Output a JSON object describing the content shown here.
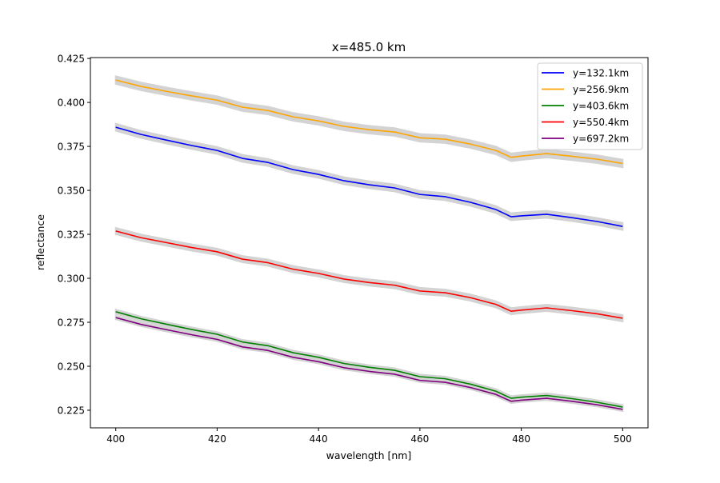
{
  "chart_data": {
    "type": "line",
    "title": "x=485.0 km",
    "xlabel": "wavelength [nm]",
    "ylabel": "reflectance",
    "xlim": [
      395,
      505
    ],
    "ylim": [
      0.215,
      0.4255
    ],
    "xticks": [
      400,
      420,
      440,
      460,
      480,
      500
    ],
    "xtick_labels": [
      "400",
      "420",
      "440",
      "460",
      "480",
      "500"
    ],
    "yticks": [
      0.225,
      0.25,
      0.275,
      0.3,
      0.325,
      0.35,
      0.375,
      0.4,
      0.425
    ],
    "ytick_labels": [
      "0.225",
      "0.250",
      "0.275",
      "0.300",
      "0.325",
      "0.350",
      "0.375",
      "0.400",
      "0.425"
    ],
    "grid": false,
    "legend_position": "top-right",
    "band_color": "#d3d3d3",
    "x": [
      400,
      405,
      410,
      415,
      420,
      425,
      430,
      435,
      440,
      445,
      450,
      455,
      460,
      465,
      470,
      475,
      478,
      480,
      485,
      490,
      495,
      500
    ],
    "series": [
      {
        "name": "y=132.1km",
        "color": "#0000ff",
        "band": 0.002,
        "values": [
          0.3859,
          0.3818,
          0.3786,
          0.3755,
          0.3727,
          0.3682,
          0.3659,
          0.3618,
          0.3591,
          0.3555,
          0.3532,
          0.3514,
          0.3477,
          0.3464,
          0.3432,
          0.3391,
          0.335,
          0.3355,
          0.3364,
          0.3345,
          0.3323,
          0.3295
        ]
      },
      {
        "name": "y=256.9km",
        "color": "#ffa500",
        "band": 0.0022,
        "values": [
          0.4127,
          0.4091,
          0.4063,
          0.4037,
          0.4013,
          0.3973,
          0.3954,
          0.3918,
          0.3895,
          0.3864,
          0.3845,
          0.3832,
          0.3799,
          0.3791,
          0.3763,
          0.3727,
          0.3688,
          0.3695,
          0.3709,
          0.3694,
          0.3677,
          0.3653
        ]
      },
      {
        "name": "y=403.6km",
        "color": "#008000",
        "band": 0.0012,
        "values": [
          0.281,
          0.277,
          0.2739,
          0.2709,
          0.2682,
          0.2638,
          0.2617,
          0.2577,
          0.2551,
          0.2516,
          0.2494,
          0.2477,
          0.2441,
          0.2429,
          0.2398,
          0.2358,
          0.2318,
          0.2324,
          0.2334,
          0.2316,
          0.2295,
          0.2268
        ]
      },
      {
        "name": "y=550.4km",
        "color": "#ff0000",
        "band": 0.0018,
        "values": [
          0.3269,
          0.3231,
          0.3203,
          0.3175,
          0.3151,
          0.3109,
          0.3089,
          0.3052,
          0.3028,
          0.2996,
          0.2976,
          0.2961,
          0.2928,
          0.2918,
          0.289,
          0.2852,
          0.2813,
          0.2819,
          0.2832,
          0.2816,
          0.2798,
          0.2773
        ]
      },
      {
        "name": "y=697.2km",
        "color": "#800080",
        "band": 0.001,
        "values": [
          0.2777,
          0.2738,
          0.2708,
          0.2679,
          0.2653,
          0.261,
          0.259,
          0.2551,
          0.2526,
          0.2492,
          0.2471,
          0.2455,
          0.242,
          0.2409,
          0.2379,
          0.234,
          0.2301,
          0.2307,
          0.2318,
          0.2301,
          0.2281,
          0.2255
        ]
      }
    ]
  }
}
